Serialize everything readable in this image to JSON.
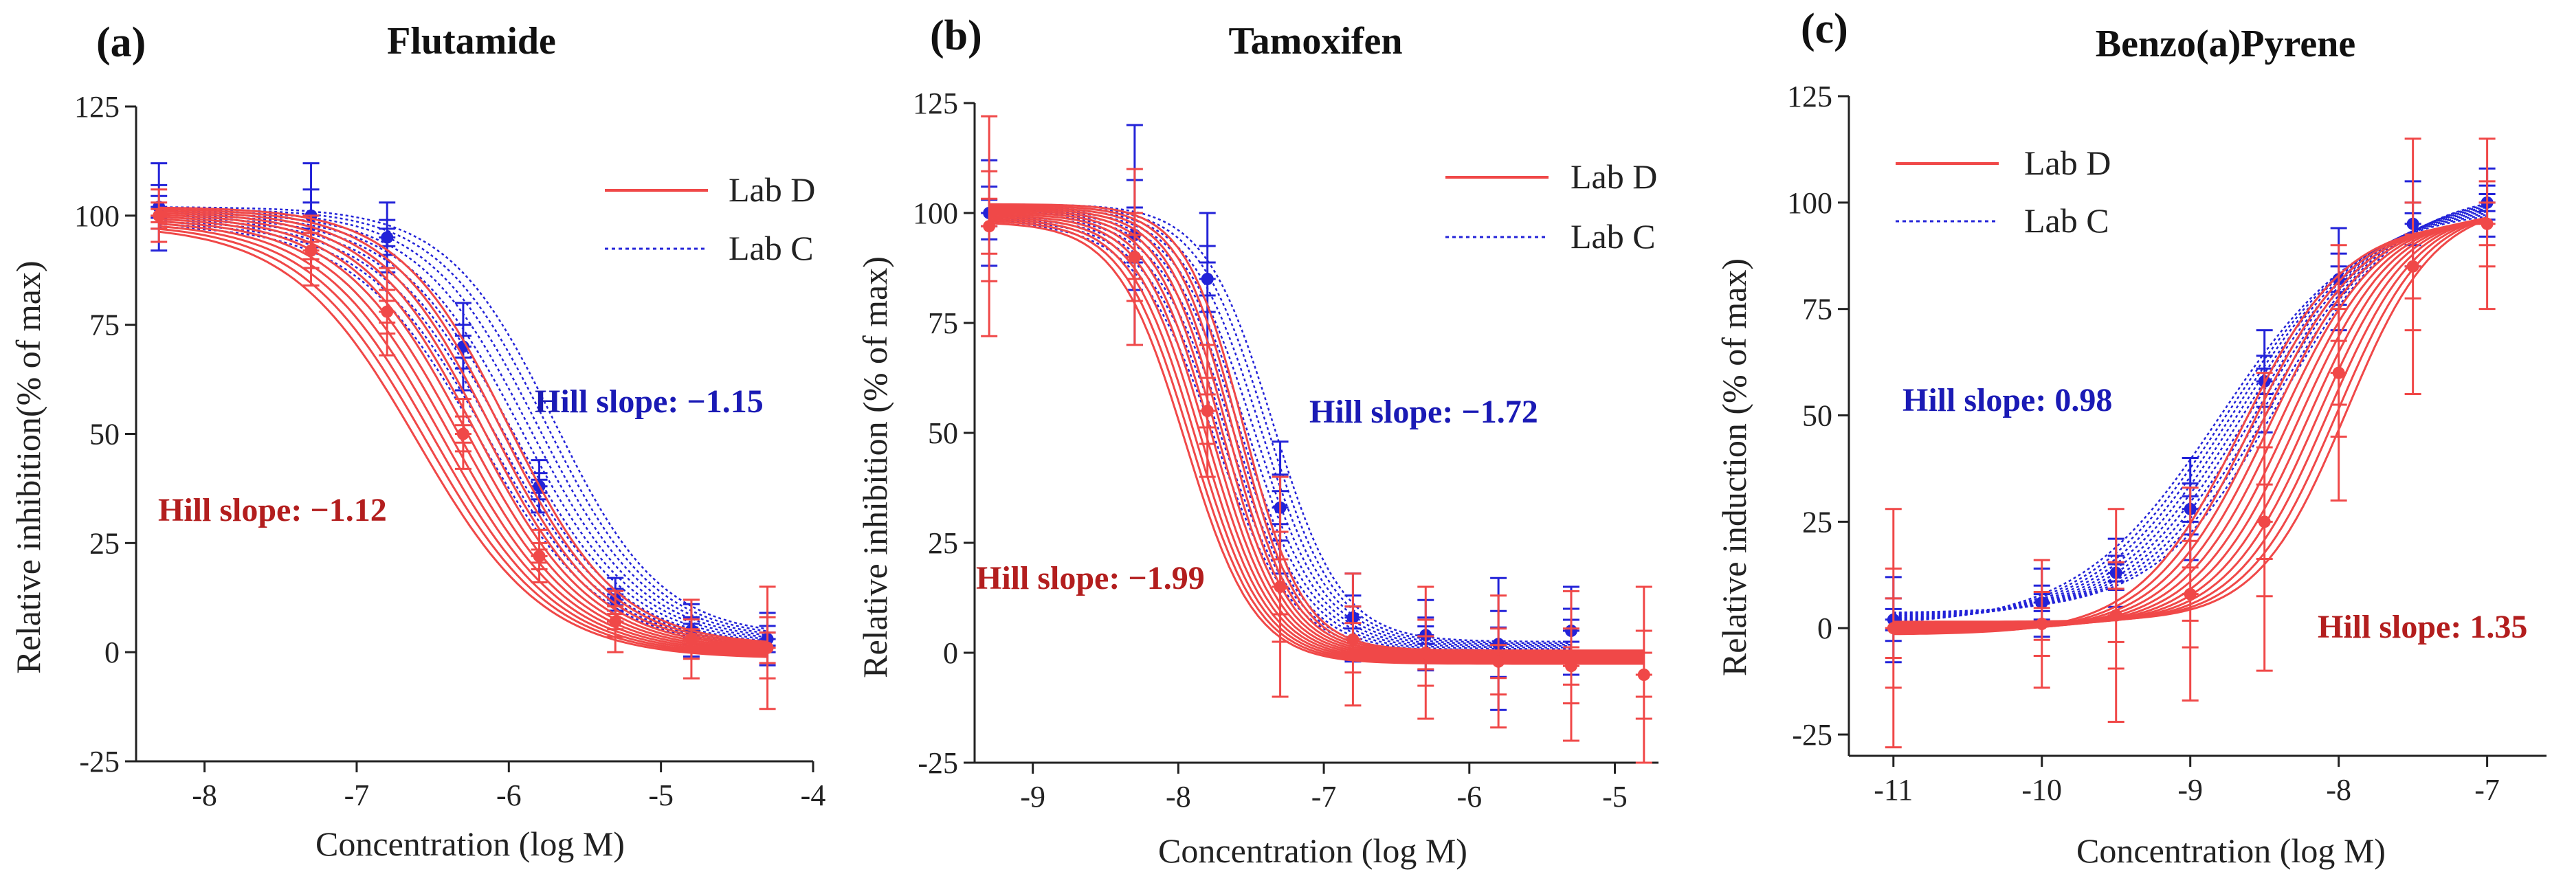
{
  "colors": {
    "lab_d": "#f04848",
    "lab_c": "#2323d8",
    "hill_red": "#b31e1e",
    "hill_blue": "#1a1ab5",
    "axis": "#222222"
  },
  "chart_data": [
    {
      "type": "line",
      "panel": "(a)",
      "title": "Flutamide",
      "xlabel": "Concentration (log M)",
      "ylabel": "Relative inhibition(% of max)",
      "xlim": [
        -8.45,
        -4.0
      ],
      "ylim": [
        -25,
        125
      ],
      "x_ticks": [
        -8,
        -7,
        -6,
        -5,
        -4
      ],
      "x_tick_labels": [
        "-8",
        "-7",
        "-6",
        "-5",
        "-4"
      ],
      "y_ticks": [
        -25,
        0,
        25,
        50,
        75,
        100,
        125
      ],
      "y_tick_labels": [
        "-25",
        "0",
        "25",
        "50",
        "75",
        "100",
        "125"
      ],
      "legend": {
        "position": "top-right",
        "entries": [
          "Lab D",
          "Lab C"
        ]
      },
      "annotations": [
        {
          "text": "Hill slope: −1.15",
          "series": "Lab C",
          "x": -5.75,
          "y": 56
        },
        {
          "text": "Hill slope: −1.12",
          "series": "Lab D",
          "x": -7.8,
          "y": 30
        }
      ],
      "series": [
        {
          "name": "Lab D",
          "style": "solid",
          "x": [
            -8.3,
            -7.3,
            -6.8,
            -6.3,
            -5.8,
            -5.3,
            -4.8,
            -4.3
          ],
          "values": [
            100,
            92,
            78,
            50,
            22,
            7,
            3,
            1
          ],
          "error": [
            6,
            8,
            10,
            8,
            6,
            7,
            9,
            14
          ],
          "fit": {
            "top": 100,
            "bottom": 0,
            "logIC50": -6.3,
            "hill_slope": -1.12,
            "curves": 12,
            "ic50_spread": 0.3
          }
        },
        {
          "name": "Lab C",
          "style": "dotted",
          "x": [
            -8.3,
            -7.3,
            -6.8,
            -6.3,
            -5.8,
            -5.3,
            -4.8,
            -4.3
          ],
          "values": [
            102,
            100,
            95,
            70,
            38,
            12,
            5,
            3
          ],
          "error": [
            10,
            12,
            8,
            10,
            6,
            5,
            6,
            6
          ],
          "fit": {
            "top": 100,
            "bottom": 2,
            "logIC50": -5.95,
            "hill_slope": -1.15,
            "curves": 10,
            "ic50_spread": 0.25
          }
        }
      ]
    },
    {
      "type": "line",
      "panel": "(b)",
      "title": "Tamoxifen",
      "xlabel": "Concentration (log M)",
      "ylabel": "Relative inhibition (% of max)",
      "xlim": [
        -9.4,
        -4.7
      ],
      "ylim": [
        -25,
        125
      ],
      "x_ticks": [
        -9,
        -8,
        -7,
        -6,
        -5
      ],
      "x_tick_labels": [
        "-9",
        "-8",
        "-7",
        "-6",
        "-5"
      ],
      "y_ticks": [
        -25,
        0,
        25,
        50,
        75,
        100,
        125
      ],
      "y_tick_labels": [
        "-25",
        "0",
        "25",
        "50",
        "75",
        "100",
        "125"
      ],
      "legend": {
        "position": "top-right",
        "entries": [
          "Lab D",
          "Lab C"
        ]
      },
      "annotations": [
        {
          "text": "Hill slope: −1.72",
          "series": "Lab C",
          "x": -6.9,
          "y": 53
        },
        {
          "text": "Hill slope: −1.99",
          "series": "Lab D",
          "x": -9.45,
          "y": 15
        }
      ],
      "series": [
        {
          "name": "Lab D",
          "style": "solid",
          "x": [
            -9.3,
            -8.3,
            -7.8,
            -7.3,
            -6.8,
            -6.3,
            -5.8,
            -5.3,
            -4.8
          ],
          "values": [
            97,
            90,
            55,
            15,
            3,
            0,
            -2,
            -3,
            -5
          ],
          "error": [
            25,
            20,
            15,
            25,
            15,
            15,
            15,
            17,
            20
          ],
          "fit": {
            "top": 100,
            "bottom": -1,
            "logIC50": -7.75,
            "hill_slope": -1.99,
            "curves": 12,
            "ic50_spread": 0.2
          }
        },
        {
          "name": "Lab C",
          "style": "dotted",
          "x": [
            -9.3,
            -8.3,
            -7.8,
            -7.3,
            -6.8,
            -6.3,
            -5.8,
            -5.3
          ],
          "values": [
            100,
            95,
            85,
            33,
            8,
            4,
            2,
            5
          ],
          "error": [
            12,
            25,
            15,
            15,
            10,
            8,
            15,
            10
          ],
          "fit": {
            "top": 100,
            "bottom": 1,
            "logIC50": -7.55,
            "hill_slope": -1.72,
            "curves": 10,
            "ic50_spread": 0.2
          }
        }
      ]
    },
    {
      "type": "line",
      "panel": "(c)",
      "title": "Benzo(a)Pyrene",
      "xlabel": "Concentration (log M)",
      "ylabel": "Relative induction (% of max)",
      "xlim": [
        -11.3,
        -6.6
      ],
      "ylim": [
        -30,
        125
      ],
      "x_ticks": [
        -11,
        -10,
        -9,
        -8,
        -7
      ],
      "x_tick_labels": [
        "-11",
        "-10",
        "-9",
        "-8",
        "-7"
      ],
      "y_ticks": [
        -25,
        0,
        25,
        50,
        75,
        100,
        125
      ],
      "y_tick_labels": [
        "-25",
        "0",
        "25",
        "50",
        "75",
        "100",
        "125"
      ],
      "legend": {
        "position": "top-left",
        "entries": [
          "Lab D",
          "Lab C"
        ]
      },
      "annotations": [
        {
          "text": "Hill slope: 0.98",
          "series": "Lab C",
          "x": -11.25,
          "y": 51
        },
        {
          "text": "Hill slope: 1.35",
          "series": "Lab D",
          "x": -7.95,
          "y": -1
        }
      ],
      "series": [
        {
          "name": "Lab D",
          "style": "solid",
          "x": [
            -11,
            -10,
            -9.5,
            -9,
            -8.5,
            -8,
            -7.5,
            -7
          ],
          "values": [
            0,
            1,
            3,
            8,
            25,
            60,
            85,
            95
          ],
          "error": [
            28,
            15,
            25,
            25,
            35,
            30,
            30,
            20
          ],
          "fit": {
            "top": 98,
            "bottom": 0,
            "logIC50": -8.3,
            "hill_slope": 1.35,
            "curves": 12,
            "ic50_spread": 0.35
          }
        },
        {
          "name": "Lab C",
          "style": "dotted",
          "x": [
            -11,
            -10,
            -9.5,
            -9,
            -8.5,
            -8,
            -7.5,
            -7
          ],
          "values": [
            2,
            6,
            13,
            28,
            58,
            82,
            95,
            100
          ],
          "error": [
            10,
            8,
            8,
            12,
            12,
            12,
            10,
            8
          ],
          "fit": {
            "top": 101,
            "bottom": 2,
            "logIC50": -8.6,
            "hill_slope": 0.98,
            "curves": 10,
            "ic50_spread": 0.2
          }
        }
      ]
    }
  ]
}
